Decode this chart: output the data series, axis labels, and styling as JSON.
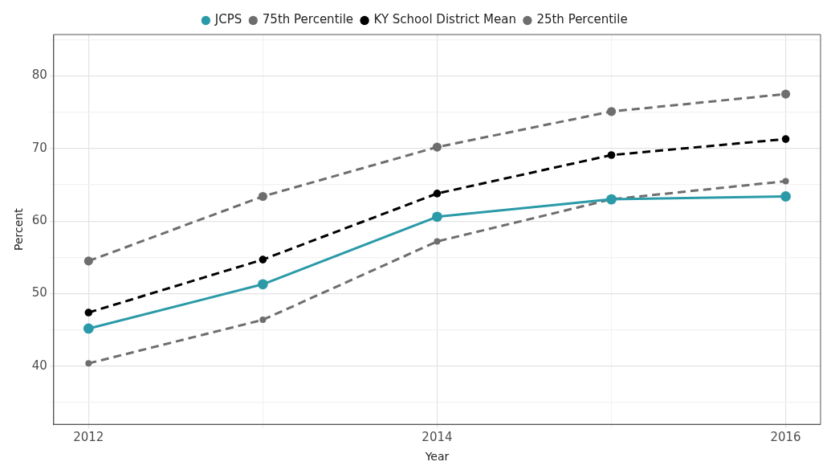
{
  "chart_data": {
    "type": "line",
    "xlabel": "Year",
    "ylabel": "Percent",
    "x": [
      2012,
      2013,
      2014,
      2015,
      2016
    ],
    "series": [
      {
        "name": "JCPS",
        "color": "#2a9aa8",
        "line_style": "solid",
        "values": [
          45.2,
          51.3,
          60.6,
          63.0,
          63.4
        ]
      },
      {
        "name": "75th Percentile",
        "color": "#6e6e6e",
        "line_style": "dashed",
        "values": [
          54.5,
          63.4,
          70.2,
          75.1,
          77.5
        ]
      },
      {
        "name": "KY School District Mean",
        "color": "#000000",
        "line_style": "dashed",
        "values": [
          47.4,
          54.7,
          63.8,
          69.1,
          71.3
        ]
      },
      {
        "name": "25th Percentile",
        "color": "#6e6e6e",
        "line_style": "dashed",
        "values": [
          40.4,
          46.4,
          57.2,
          63.0,
          65.5
        ]
      }
    ],
    "xlim": [
      2011.8,
      2016.2
    ],
    "xticks": [
      2012,
      {
        "value": 2013,
        "label": null
      },
      2014,
      {
        "value": 2015,
        "label": null
      },
      2016
    ],
    "ylim": [
      32,
      85.7
    ],
    "yticks": [
      {
        "value": 35,
        "label": null
      },
      40,
      {
        "value": 45,
        "label": null
      },
      50,
      {
        "value": 55,
        "label": null
      },
      60,
      {
        "value": 65,
        "label": null
      },
      70,
      {
        "value": 75,
        "label": null
      },
      80,
      {
        "value": 85,
        "label": null
      }
    ],
    "grid": true,
    "legend": "top",
    "marker": "circle"
  }
}
